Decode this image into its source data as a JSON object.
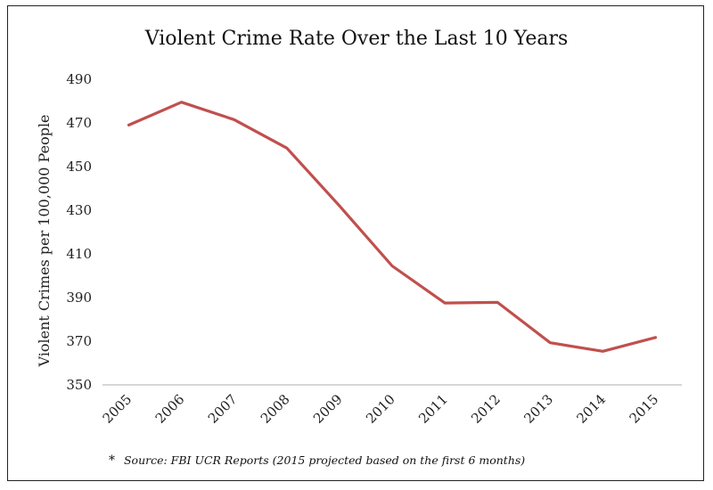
{
  "chart_data": {
    "type": "line",
    "title": "Violent Crime Rate Over the Last 10 Years",
    "xlabel": "",
    "ylabel": "Violent Crimes per 100,000 People",
    "x": [
      "2005",
      "2006",
      "2007",
      "2008",
      "2009",
      "2010",
      "2011",
      "2012",
      "2013",
      "2014",
      "2015"
    ],
    "series": [
      {
        "name": "Violent Crime Rate",
        "color": "#c0504d",
        "values": [
          469,
          479.5,
          471.5,
          458.5,
          432,
          404.5,
          387.5,
          387.8,
          369.3,
          365.4,
          371.7
        ]
      }
    ],
    "ylim": [
      350,
      490
    ],
    "yticks": [
      350,
      370,
      390,
      410,
      430,
      450,
      470,
      490
    ],
    "grid": false,
    "legend": "none"
  },
  "footnote": {
    "marker": "*",
    "text": "Source: FBI UCR Reports (2015 projected based on the first 6 months)"
  }
}
